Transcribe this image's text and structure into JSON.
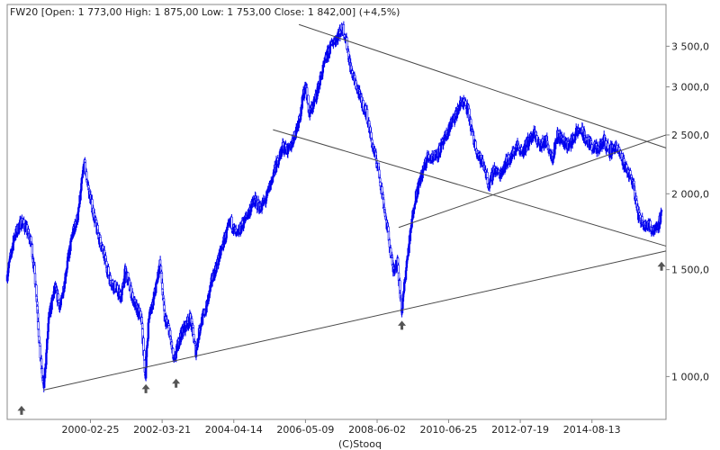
{
  "header": {
    "info_line": "FW20 [Open: 1 773,00  High: 1 875,00  Low: 1 753,00  Close: 1 842,00]  (+4,5%)"
  },
  "footer": {
    "copyright": "(C)Stooq"
  },
  "colors": {
    "candles": "#0000ee",
    "trendlines": "#4a4a4a",
    "arrows": "#555555",
    "frame": "#888888"
  },
  "chart_data": {
    "type": "line",
    "symbol": "FW20",
    "scale": "log",
    "ylim": [
      850,
      4100
    ],
    "xlim": [
      "1997-10-01",
      "2016-10-01"
    ],
    "y_ticks": [
      1000,
      1500,
      2000,
      2500,
      3000,
      3500
    ],
    "y_tick_labels": [
      "1 000,0",
      "1 500,0",
      "2 000,0",
      "2 500,0",
      "3 000,0",
      "3 500,0"
    ],
    "x_ticks": [
      "2000-02-25",
      "2002-03-21",
      "2004-04-14",
      "2006-05-09",
      "2008-06-02",
      "2010-06-25",
      "2012-07-19",
      "2014-08-13"
    ],
    "last_bar": {
      "open": 1773.0,
      "high": 1875.0,
      "low": 1753.0,
      "close": 1842.0,
      "change": "+4,5%"
    },
    "series": [
      {
        "x": [
          "1997-10-01",
          "1997-12-15",
          "1998-03-01",
          "1998-04-15",
          "1998-06-15",
          "1998-08-01",
          "1998-09-10",
          "1998-10-20",
          "1998-12-15",
          "1999-02-15",
          "1999-04-15",
          "1999-06-15",
          "1999-08-15",
          "1999-10-20",
          "1999-12-20",
          "2000-02-01",
          "2000-03-15",
          "2000-05-01",
          "2000-06-15",
          "2000-08-01",
          "2000-09-15",
          "2000-11-15",
          "2001-01-15",
          "2001-03-01",
          "2001-04-15",
          "2001-06-15",
          "2001-08-15",
          "2001-09-25",
          "2001-11-01",
          "2002-01-15",
          "2002-03-01",
          "2002-04-15",
          "2002-06-01",
          "2002-07-25",
          "2002-09-15",
          "2002-11-01",
          "2003-01-15",
          "2003-03-10",
          "2003-05-01",
          "2003-07-01",
          "2003-09-01",
          "2003-11-01",
          "2004-01-15",
          "2004-03-15",
          "2004-05-15",
          "2004-07-15",
          "2004-09-15",
          "2004-11-15",
          "2005-01-15",
          "2005-03-15",
          "2005-05-15",
          "2005-07-15",
          "2005-09-15",
          "2005-11-15",
          "2006-01-15",
          "2006-03-15",
          "2006-05-10",
          "2006-06-20",
          "2006-08-15",
          "2006-10-15",
          "2006-12-15",
          "2007-02-15",
          "2007-04-15",
          "2007-06-10",
          "2007-07-15",
          "2007-09-01",
          "2007-10-31",
          "2007-12-15",
          "2008-02-15",
          "2008-04-15",
          "2008-06-15",
          "2008-08-15",
          "2008-10-01",
          "2008-11-15",
          "2008-12-31",
          "2009-02-18",
          "2009-04-01",
          "2009-05-15",
          "2009-07-01",
          "2009-09-15",
          "2009-11-15",
          "2010-01-15",
          "2010-03-15",
          "2010-05-15",
          "2010-07-15",
          "2010-09-15",
          "2010-11-15",
          "2011-01-15",
          "2011-03-15",
          "2011-05-15",
          "2011-07-15",
          "2011-08-25",
          "2011-10-15",
          "2011-12-15",
          "2012-02-15",
          "2012-04-15",
          "2012-06-15",
          "2012-08-15",
          "2012-10-15",
          "2012-12-15",
          "2013-02-15",
          "2013-04-15",
          "2013-06-25",
          "2013-08-15",
          "2013-10-15",
          "2013-12-15",
          "2014-02-15",
          "2014-04-15",
          "2014-06-15",
          "2014-08-15",
          "2014-10-15",
          "2014-12-15",
          "2015-02-15",
          "2015-04-15",
          "2015-06-15",
          "2015-08-15",
          "2015-10-15",
          "2015-12-15",
          "2016-01-20",
          "2016-03-15",
          "2016-05-15",
          "2016-07-15",
          "2016-08-15"
        ],
        "y": [
          1470,
          1700,
          1800,
          1760,
          1650,
          1400,
          1100,
          950,
          1250,
          1400,
          1300,
          1500,
          1700,
          1850,
          2250,
          2050,
          1900,
          1750,
          1650,
          1550,
          1450,
          1400,
          1350,
          1500,
          1400,
          1300,
          1250,
          1000,
          1250,
          1400,
          1550,
          1250,
          1200,
          1050,
          1150,
          1200,
          1250,
          1100,
          1220,
          1300,
          1450,
          1550,
          1700,
          1800,
          1700,
          1780,
          1860,
          1950,
          1900,
          1950,
          2100,
          2250,
          2400,
          2350,
          2500,
          2700,
          3050,
          2700,
          2850,
          3100,
          3350,
          3550,
          3650,
          3750,
          3550,
          3200,
          3000,
          2850,
          2700,
          2400,
          2200,
          1900,
          1700,
          1500,
          1550,
          1280,
          1500,
          1700,
          1950,
          2150,
          2300,
          2300,
          2350,
          2450,
          2600,
          2700,
          2850,
          2750,
          2450,
          2300,
          2200,
          2050,
          2200,
          2150,
          2250,
          2300,
          2400,
          2350,
          2450,
          2500,
          2400,
          2450,
          2300,
          2500,
          2450,
          2400,
          2500,
          2550,
          2450,
          2400,
          2350,
          2450,
          2350,
          2400,
          2300,
          2200,
          2100,
          1850,
          1800,
          1780,
          1750,
          1780,
          1842
        ],
        "color": "#0000ee"
      }
    ],
    "trendlines": [
      {
        "from": [
          "1998-10-20",
          950
        ],
        "to": [
          "2016-10-01",
          1610
        ]
      },
      {
        "from": [
          "2006-03-01",
          3800
        ],
        "to": [
          "2016-10-01",
          2380
        ]
      },
      {
        "from": [
          "2005-06-01",
          2550
        ],
        "to": [
          "2016-10-01",
          1640
        ]
      },
      {
        "from": [
          "2009-01-15",
          1760
        ],
        "to": [
          "2016-10-01",
          2500
        ]
      }
    ],
    "markers": [
      {
        "type": "arrow-up",
        "x": "1998-03-01",
        "y": 880
      },
      {
        "type": "arrow-up",
        "x": "2001-10-01",
        "y": 955
      },
      {
        "type": "arrow-up",
        "x": "2002-08-15",
        "y": 975
      },
      {
        "type": "arrow-up",
        "x": "2009-02-18",
        "y": 1215
      },
      {
        "type": "arrow-up",
        "x": "2016-08-15",
        "y": 1520
      }
    ]
  }
}
